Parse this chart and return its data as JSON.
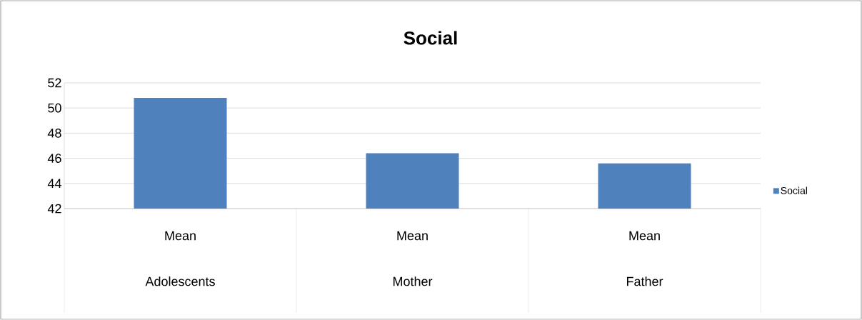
{
  "chart_data": {
    "type": "bar",
    "title": "Social",
    "categories": [
      "Adolescents",
      "Mother",
      "Father"
    ],
    "series": [
      {
        "name": "Social",
        "color": "#4f81bd",
        "values": [
          50.8,
          46.4,
          45.6
        ]
      }
    ],
    "annotations": [
      "Mean",
      "Mean",
      "Mean"
    ],
    "ylim": [
      42,
      52
    ],
    "yticks": [
      42,
      44,
      46,
      48,
      50,
      52
    ],
    "grid": "y",
    "legend": "right"
  }
}
